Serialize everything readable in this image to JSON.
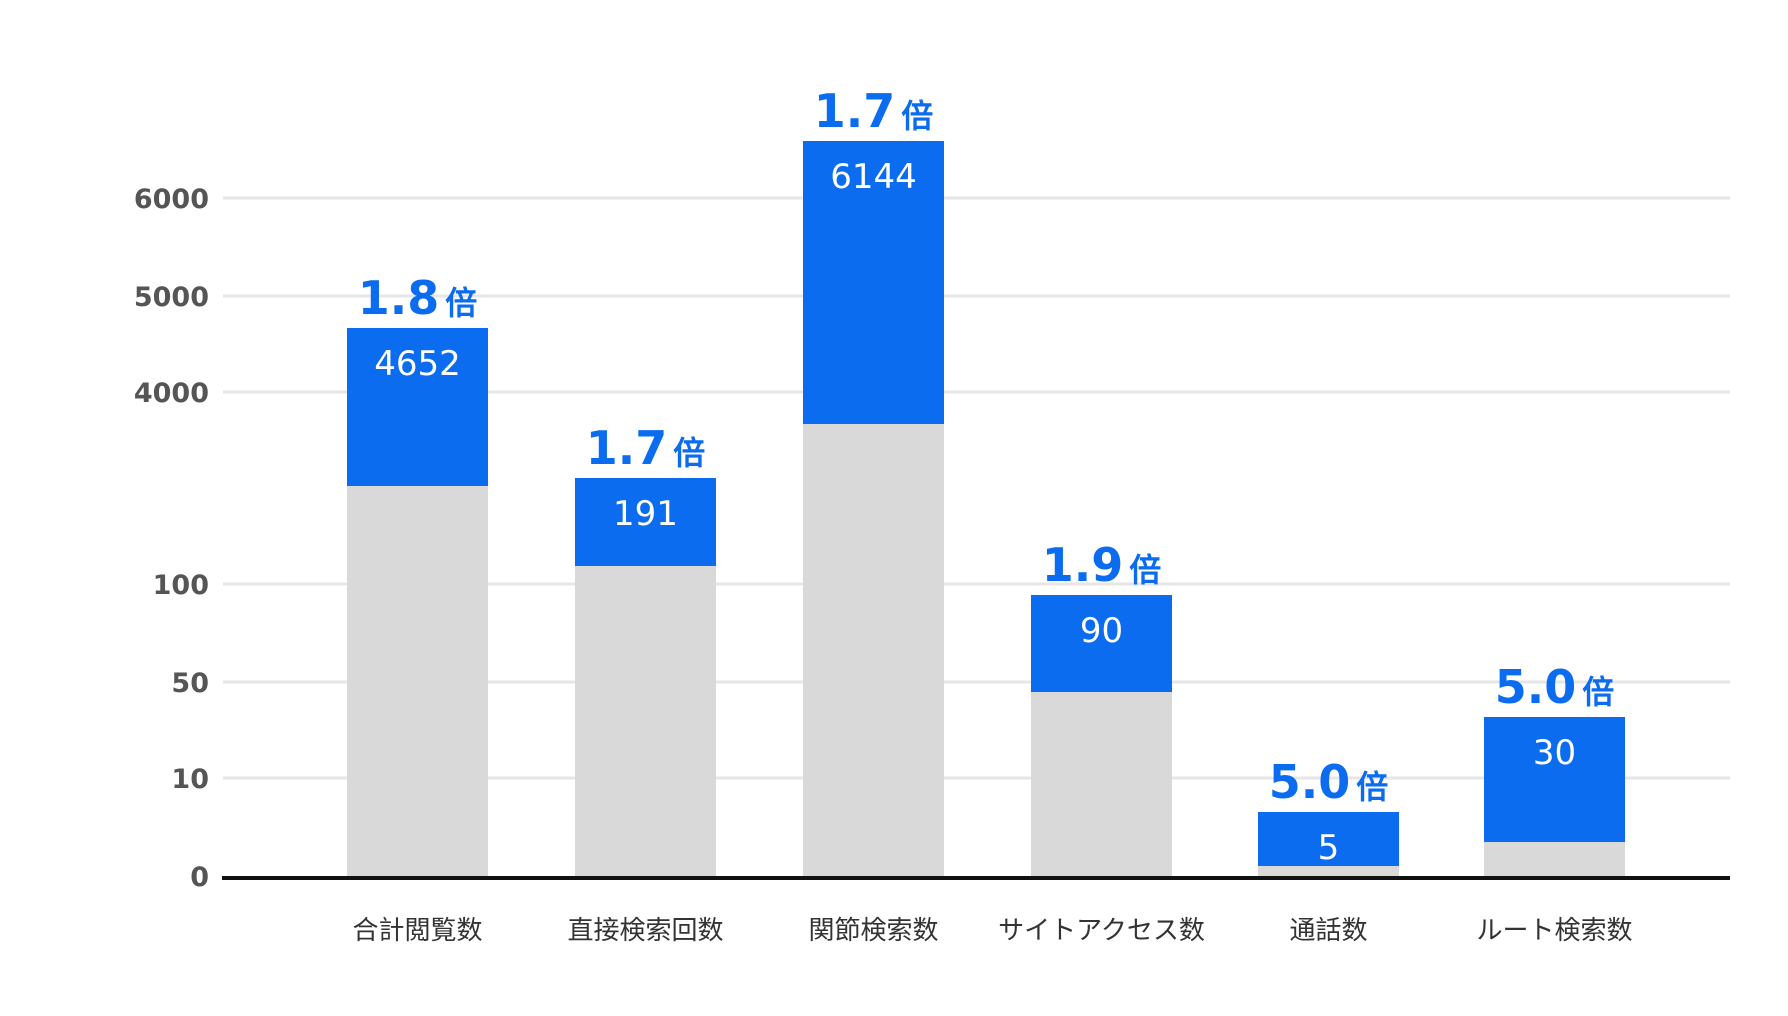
{
  "chart_data": {
    "type": "bar",
    "stacked": true,
    "title": "",
    "xlabel": "",
    "ylabel": "",
    "y_axis_broken": true,
    "y_ticks": [
      "0",
      "10",
      "50",
      "100",
      "4000",
      "5000",
      "6000"
    ],
    "grid": true,
    "categories": [
      "合計閲覧数",
      "直接検索回数",
      "関節検索数",
      "サイトアクセス数",
      "通話数",
      "ルート検索数"
    ],
    "values": [
      4652,
      191,
      6144,
      90,
      5,
      30
    ],
    "value_labels": [
      "4652",
      "191",
      "6144",
      "90",
      "5",
      "30"
    ],
    "ratios": [
      "1.8",
      "1.7",
      "1.7",
      "1.9",
      "5.0",
      "5.0"
    ],
    "ratio_unit": "倍",
    "colors": {
      "after": "#0b6cf0",
      "before": "#d9d9d9",
      "grid": "#e6e6e6",
      "axis": "#111111"
    }
  }
}
